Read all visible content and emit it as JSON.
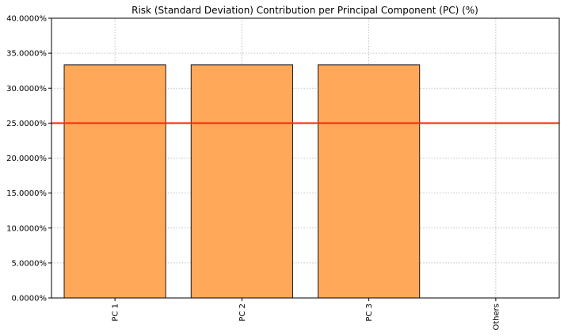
{
  "chart_data": {
    "type": "bar",
    "title": "Risk (Standard Deviation) Contribution per Principal Component (PC) (%)",
    "xlabel": "",
    "ylabel": "",
    "categories": [
      "PC 1",
      "PC 2",
      "PC 3",
      "Others"
    ],
    "values": [
      33.3333,
      33.3333,
      33.3333,
      0
    ],
    "ylim": [
      0,
      40
    ],
    "yticks": [
      0,
      5,
      10,
      15,
      20,
      25,
      30,
      35,
      40
    ],
    "ytick_labels": [
      "0.0000%",
      "5.0000%",
      "10.0000%",
      "15.0000%",
      "20.0000%",
      "25.0000%",
      "30.0000%",
      "35.0000%",
      "40.0000%"
    ],
    "reference_line": {
      "value": 25,
      "color": "#ff2a0a"
    },
    "bar_color": "#ffa85a",
    "bar_edge_color": "#1a1a1a",
    "grid": true,
    "x_tick_rotation": "vertical"
  }
}
